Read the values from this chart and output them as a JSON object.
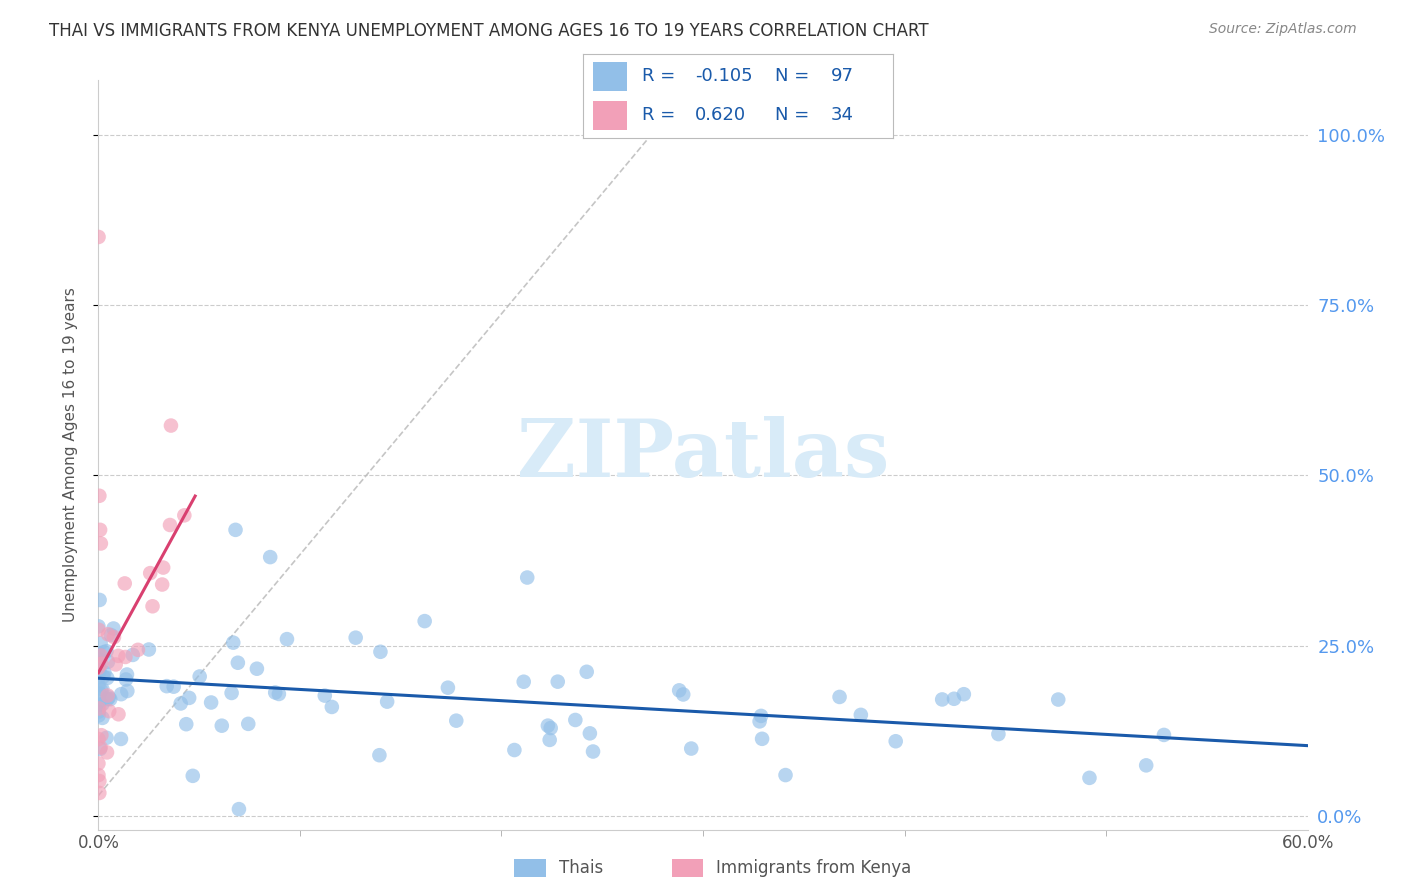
{
  "title": "THAI VS IMMIGRANTS FROM KENYA UNEMPLOYMENT AMONG AGES 16 TO 19 YEARS CORRELATION CHART",
  "source": "Source: ZipAtlas.com",
  "ylabel": "Unemployment Among Ages 16 to 19 years",
  "xlim": [
    0.0,
    0.6
  ],
  "ylim": [
    -0.02,
    1.08
  ],
  "plot_ylim": [
    0.0,
    1.05
  ],
  "xtick_left_label": "0.0%",
  "xtick_right_label": "60.0%",
  "ytick_vals": [
    0.0,
    0.25,
    0.5,
    0.75,
    1.0
  ],
  "ytick_labels_right": [
    "0.0%",
    "25.0%",
    "50.0%",
    "75.0%",
    "100.0%"
  ],
  "legend_thai_R": "-0.105",
  "legend_thai_N": "97",
  "legend_kenya_R": "0.620",
  "legend_kenya_N": "34",
  "thai_color": "#92BFE8",
  "kenya_color": "#F2A0B8",
  "thai_line_color": "#1A5AAA",
  "kenya_line_color": "#D94070",
  "diag_line_color": "#BBBBBB",
  "watermark_color": "#D8EBF8",
  "right_tick_color": "#5599EE",
  "title_color": "#333333",
  "source_color": "#888888",
  "label_color": "#555555",
  "grid_color": "#CCCCCC"
}
